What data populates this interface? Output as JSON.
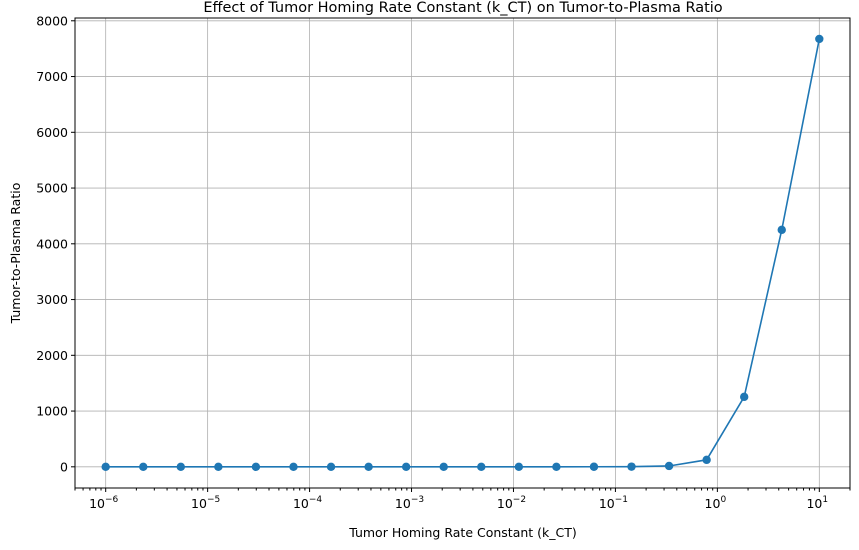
{
  "chart_data": {
    "type": "line",
    "title": "Effect of Tumor Homing Rate Constant (k_CT) on Tumor-to-Plasma Ratio",
    "xlabel": "Tumor Homing Rate Constant (k_CT)",
    "ylabel": "Tumor-to-Plasma Ratio",
    "xscale": "log",
    "xlim": [
      5e-07,
      20
    ],
    "ylim": [
      -380,
      8050
    ],
    "grid": true,
    "color": "#1f77b4",
    "x_ticks": [
      {
        "base": "10",
        "exp": "−6",
        "value": 1e-06
      },
      {
        "base": "10",
        "exp": "−5",
        "value": 1e-05
      },
      {
        "base": "10",
        "exp": "−4",
        "value": 0.0001
      },
      {
        "base": "10",
        "exp": "−3",
        "value": 0.001
      },
      {
        "base": "10",
        "exp": "−2",
        "value": 0.01
      },
      {
        "base": "10",
        "exp": "−1",
        "value": 0.1
      },
      {
        "base": "10",
        "exp": "0",
        "value": 1
      },
      {
        "base": "10",
        "exp": "1",
        "value": 10
      }
    ],
    "y_ticks": [
      "0",
      "1000",
      "2000",
      "3000",
      "4000",
      "5000",
      "6000",
      "7000",
      "8000"
    ],
    "series": [
      {
        "x": [
          1e-06,
          2.336e-06,
          5.456e-06,
          1.274e-05,
          2.976e-05,
          6.952e-05,
          0.0001624,
          0.0003793,
          0.0008859,
          0.002069,
          0.004833,
          0.01129,
          0.02637,
          0.06158,
          0.1438,
          0.336,
          0.7848,
          1.833,
          4.281,
          10
        ],
        "y": [
          0,
          0,
          0,
          0,
          0,
          0,
          0,
          0,
          0,
          0,
          0,
          0,
          0,
          1,
          3,
          15,
          125,
          1255,
          4250,
          7675
        ]
      }
    ]
  }
}
